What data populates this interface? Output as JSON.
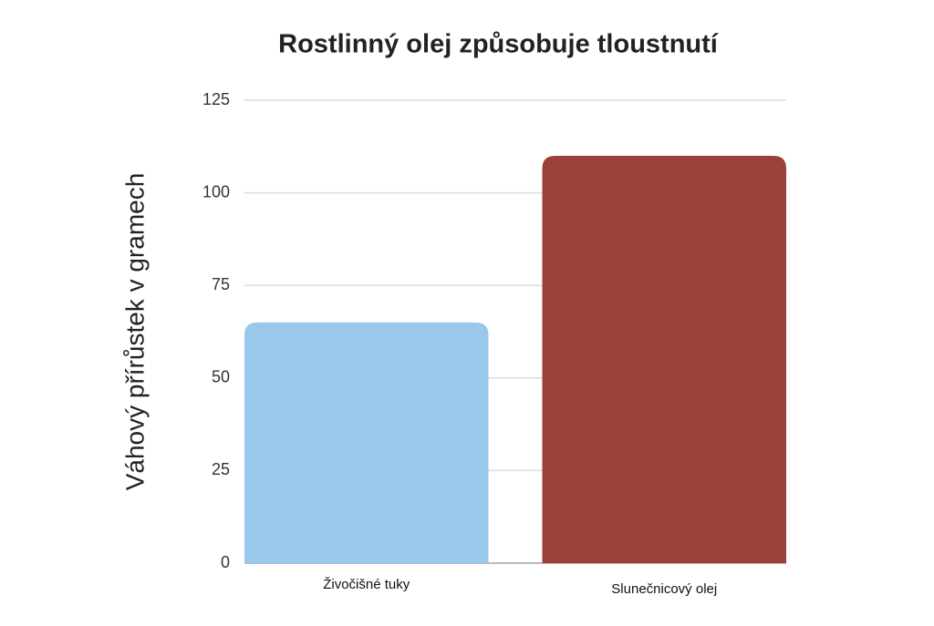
{
  "chart_data": {
    "type": "bar",
    "title": "Rostlinný olej způsobuje tloustnutí",
    "y_label": "Váhový přírůstek v gramech",
    "categories": [
      "Živočišné tuky",
      "Slunečnicový olej"
    ],
    "values": [
      65,
      110
    ],
    "colors": [
      "#99c8eb",
      "#9b413b"
    ],
    "ylim": [
      0,
      125
    ],
    "yticks": [
      0,
      25,
      50,
      75,
      100,
      125
    ],
    "grid": true
  }
}
